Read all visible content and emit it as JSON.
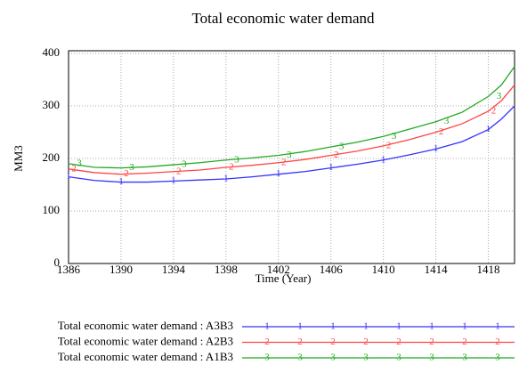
{
  "chart_data": {
    "type": "line",
    "title": "Total economic water demand",
    "xlabel": "Time (Year)",
    "ylabel": "MM3",
    "x": [
      1386,
      1388,
      1390,
      1392,
      1394,
      1396,
      1398,
      1400,
      1402,
      1404,
      1406,
      1408,
      1410,
      1412,
      1414,
      1416,
      1418,
      1419,
      1420
    ],
    "series": [
      {
        "name": "Total economic water demand : A3B3",
        "marker": "1",
        "color": "#3333ff",
        "values": [
          165,
          158,
          155,
          155,
          157,
          159,
          161,
          165,
          170,
          175,
          182,
          189,
          197,
          207,
          218,
          232,
          255,
          275,
          300
        ]
      },
      {
        "name": "Total economic water demand : A2B3",
        "marker": "2",
        "color": "#ff4444",
        "values": [
          180,
          173,
          170,
          172,
          175,
          178,
          183,
          187,
          192,
          198,
          206,
          214,
          224,
          236,
          250,
          266,
          290,
          310,
          340
        ]
      },
      {
        "name": "Total economic water demand : A1B3",
        "marker": "3",
        "color": "#22aa22",
        "values": [
          190,
          183,
          182,
          184,
          188,
          192,
          197,
          201,
          206,
          213,
          222,
          231,
          242,
          256,
          270,
          288,
          318,
          340,
          375
        ]
      }
    ],
    "xlim": [
      1386,
      1420
    ],
    "xticks": [
      1386,
      1390,
      1394,
      1398,
      1402,
      1406,
      1410,
      1414,
      1418
    ],
    "ylim": [
      0,
      400
    ],
    "yticks": [
      0,
      100,
      200,
      300,
      400
    ],
    "grid": true
  }
}
